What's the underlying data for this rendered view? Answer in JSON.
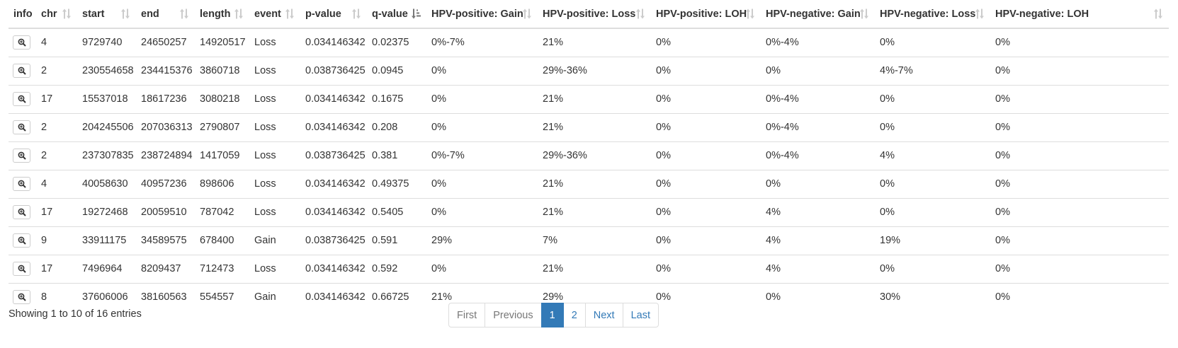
{
  "table": {
    "columns": [
      {
        "label": "info",
        "sort": "none"
      },
      {
        "label": "chr",
        "sort": "both"
      },
      {
        "label": "start",
        "sort": "both"
      },
      {
        "label": "end",
        "sort": "both"
      },
      {
        "label": "length",
        "sort": "both"
      },
      {
        "label": "event",
        "sort": "both"
      },
      {
        "label": "p-value",
        "sort": "both"
      },
      {
        "label": "q-value",
        "sort": "asc"
      },
      {
        "label": "HPV-positive: Gain",
        "sort": "both"
      },
      {
        "label": "HPV-positive: Loss",
        "sort": "both"
      },
      {
        "label": "HPV-positive: LOH",
        "sort": "both"
      },
      {
        "label": "HPV-negative: Gain",
        "sort": "both"
      },
      {
        "label": "HPV-negative: Loss",
        "sort": "both"
      },
      {
        "label": "HPV-negative: LOH",
        "sort": "both"
      }
    ],
    "rows": [
      [
        "4",
        "9729740",
        "24650257",
        "14920517",
        "Loss",
        "0.034146342",
        "0.02375",
        "0%-7%",
        "21%",
        "0%",
        "0%-4%",
        "0%",
        "0%"
      ],
      [
        "2",
        "230554658",
        "234415376",
        "3860718",
        "Loss",
        "0.038736425",
        "0.0945",
        "0%",
        "29%-36%",
        "0%",
        "0%",
        "4%-7%",
        "0%"
      ],
      [
        "17",
        "15537018",
        "18617236",
        "3080218",
        "Loss",
        "0.034146342",
        "0.1675",
        "0%",
        "21%",
        "0%",
        "0%-4%",
        "0%",
        "0%"
      ],
      [
        "2",
        "204245506",
        "207036313",
        "2790807",
        "Loss",
        "0.034146342",
        "0.208",
        "0%",
        "21%",
        "0%",
        "0%-4%",
        "0%",
        "0%"
      ],
      [
        "2",
        "237307835",
        "238724894",
        "1417059",
        "Loss",
        "0.038736425",
        "0.381",
        "0%-7%",
        "29%-36%",
        "0%",
        "0%-4%",
        "4%",
        "0%"
      ],
      [
        "4",
        "40058630",
        "40957236",
        "898606",
        "Loss",
        "0.034146342",
        "0.49375",
        "0%",
        "21%",
        "0%",
        "0%",
        "0%",
        "0%"
      ],
      [
        "17",
        "19272468",
        "20059510",
        "787042",
        "Loss",
        "0.034146342",
        "0.5405",
        "0%",
        "21%",
        "0%",
        "4%",
        "0%",
        "0%"
      ],
      [
        "9",
        "33911175",
        "34589575",
        "678400",
        "Gain",
        "0.038736425",
        "0.591",
        "29%",
        "7%",
        "0%",
        "4%",
        "19%",
        "0%"
      ],
      [
        "17",
        "7496964",
        "8209437",
        "712473",
        "Loss",
        "0.034146342",
        "0.592",
        "0%",
        "21%",
        "0%",
        "4%",
        "0%",
        "0%"
      ],
      [
        "8",
        "37606006",
        "38160563",
        "554557",
        "Gain",
        "0.034146342",
        "0.66725",
        "21%",
        "29%",
        "0%",
        "0%",
        "30%",
        "0%"
      ]
    ],
    "row_button_icon": "zoom-in-icon"
  },
  "footer": {
    "info": "Showing 1 to 10 of 16 entries"
  },
  "pagination": {
    "items": [
      {
        "label": "First",
        "state": "disabled"
      },
      {
        "label": "Previous",
        "state": "disabled"
      },
      {
        "label": "1",
        "state": "active"
      },
      {
        "label": "2",
        "state": "normal"
      },
      {
        "label": "Next",
        "state": "normal"
      },
      {
        "label": "Last",
        "state": "normal"
      }
    ]
  },
  "colors": {
    "accent": "#337ab7",
    "border": "#dddddd",
    "text": "#333333",
    "sort_icon": "#cccccc",
    "sort_icon_active": "#777777"
  }
}
